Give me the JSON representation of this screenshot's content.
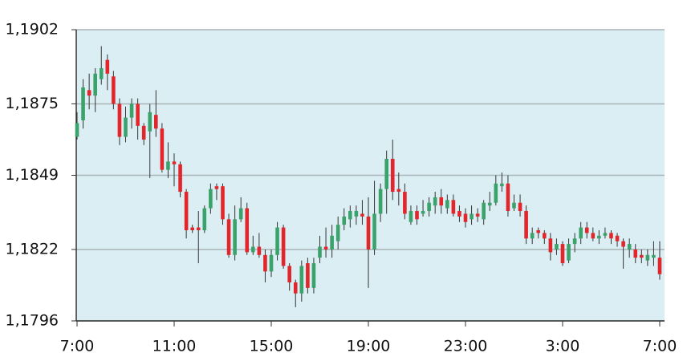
{
  "chart_data": {
    "type": "candlestick",
    "categories": [
      "7:00",
      null,
      null,
      null,
      null,
      null,
      null,
      null,
      null,
      null,
      null,
      null,
      null,
      null,
      null,
      null,
      "11:00",
      null,
      null,
      null,
      null,
      null,
      null,
      null,
      null,
      null,
      null,
      null,
      null,
      null,
      null,
      null,
      "15:00",
      null,
      null,
      null,
      null,
      null,
      null,
      null,
      null,
      null,
      null,
      null,
      null,
      null,
      null,
      null,
      "19:00",
      null,
      null,
      null,
      null,
      null,
      null,
      null,
      null,
      null,
      null,
      null,
      null,
      null,
      null,
      null,
      "23:00",
      null,
      null,
      null,
      null,
      null,
      null,
      null,
      null,
      null,
      null,
      null,
      null,
      null,
      null,
      null,
      "3:00",
      null,
      null,
      null,
      null,
      null,
      null,
      null,
      null,
      null,
      null,
      null,
      null,
      null,
      null,
      null,
      "7:00"
    ],
    "open": [
      1.1863,
      1.1869,
      1.188,
      1.1878,
      1.1884,
      1.1891,
      1.1885,
      1.1875,
      1.1863,
      1.187,
      1.1875,
      1.1867,
      1.1865,
      1.1871,
      1.1866,
      1.1851,
      1.1854,
      1.1853,
      1.1843,
      1.183,
      1.183,
      1.1829,
      1.1837,
      1.1845,
      1.1845,
      1.1833,
      1.182,
      1.1833,
      1.1837,
      1.1821,
      1.1823,
      1.182,
      1.1814,
      1.182,
      1.183,
      1.1816,
      1.181,
      1.1806,
      1.1817,
      1.1808,
      1.1819,
      1.1823,
      1.1822,
      1.1825,
      1.1831,
      1.1833,
      1.1834,
      1.1835,
      1.1834,
      1.1822,
      1.1835,
      1.1844,
      1.1855,
      1.1844,
      1.1843,
      1.1832,
      1.1836,
      1.1835,
      1.1836,
      1.1838,
      1.1841,
      1.1837,
      1.184,
      1.1836,
      1.1835,
      1.1833,
      1.1835,
      1.1833,
      1.1838,
      1.1839,
      1.1845,
      1.1846,
      1.1837,
      1.1839,
      1.1836,
      1.1826,
      1.1829,
      1.1828,
      1.1826,
      1.1822,
      1.1824,
      1.1818,
      1.1824,
      1.1826,
      1.183,
      1.1828,
      1.1826,
      1.1827,
      1.1828,
      1.1827,
      1.1825,
      1.1822,
      1.1822,
      1.182,
      1.1818,
      1.1819,
      1.1819
    ],
    "high": [
      1.1872,
      1.1884,
      1.1886,
      1.1888,
      1.1896,
      1.1893,
      1.1887,
      1.1877,
      1.1874,
      1.1877,
      1.1877,
      1.1868,
      1.1875,
      1.188,
      1.1868,
      1.1861,
      1.1857,
      1.1854,
      1.1844,
      1.1831,
      1.1836,
      1.1838,
      1.1846,
      1.1846,
      1.1846,
      1.1835,
      1.1838,
      1.1841,
      1.1839,
      1.1827,
      1.1828,
      1.1822,
      1.1822,
      1.1832,
      1.1831,
      1.1817,
      1.1811,
      1.1818,
      1.1819,
      1.1819,
      1.1827,
      1.183,
      1.1831,
      1.1834,
      1.1837,
      1.1838,
      1.1838,
      1.184,
      1.1841,
      1.1847,
      1.1846,
      1.1858,
      1.1862,
      1.185,
      1.1846,
      1.1838,
      1.1838,
      1.184,
      1.1841,
      1.1843,
      1.1844,
      1.1842,
      1.1842,
      1.1838,
      1.1837,
      1.1838,
      1.1837,
      1.184,
      1.1843,
      1.1849,
      1.185,
      1.1849,
      1.1842,
      1.1842,
      1.1838,
      1.183,
      1.183,
      1.1829,
      1.1828,
      1.1826,
      1.1825,
      1.1826,
      1.1828,
      1.1832,
      1.1832,
      1.183,
      1.1829,
      1.183,
      1.1829,
      1.1828,
      1.1826,
      1.1826,
      1.1824,
      1.1822,
      1.1822,
      1.1825,
      1.1825
    ],
    "low": [
      1.1862,
      1.1866,
      1.1873,
      1.1872,
      1.1882,
      1.188,
      1.1873,
      1.186,
      1.1861,
      1.1866,
      1.1862,
      1.186,
      1.1848,
      1.1863,
      1.185,
      1.1848,
      1.1845,
      1.1841,
      1.1826,
      1.1828,
      1.1817,
      1.1828,
      1.1835,
      1.184,
      1.1831,
      1.1819,
      1.1818,
      1.1832,
      1.182,
      1.182,
      1.1819,
      1.181,
      1.1812,
      1.1818,
      1.1815,
      1.1807,
      1.1801,
      1.1803,
      1.1806,
      1.1806,
      1.1817,
      1.1819,
      1.1819,
      1.1822,
      1.1829,
      1.183,
      1.1831,
      1.1831,
      1.1808,
      1.182,
      1.1832,
      1.1835,
      1.184,
      1.1838,
      1.1833,
      1.1831,
      1.1831,
      1.1834,
      1.1834,
      1.1835,
      1.1835,
      1.1835,
      1.1834,
      1.1832,
      1.183,
      1.1831,
      1.1832,
      1.1831,
      1.1836,
      1.1838,
      1.1843,
      1.1834,
      1.1836,
      1.1834,
      1.1824,
      1.1824,
      1.1826,
      1.1824,
      1.1818,
      1.182,
      1.1816,
      1.1817,
      1.1821,
      1.1824,
      1.1826,
      1.1825,
      1.1824,
      1.1826,
      1.1824,
      1.1823,
      1.1815,
      1.1819,
      1.1817,
      1.1817,
      1.1816,
      1.1816,
      1.1811
    ],
    "close": [
      1.1868,
      1.1881,
      1.1878,
      1.1886,
      1.1888,
      1.1886,
      1.1875,
      1.1863,
      1.187,
      1.1875,
      1.1867,
      1.1862,
      1.1872,
      1.1866,
      1.1851,
      1.1854,
      1.1853,
      1.1843,
      1.1829,
      1.1829,
      1.1829,
      1.1837,
      1.1844,
      1.1844,
      1.1833,
      1.182,
      1.1833,
      1.1837,
      1.1821,
      1.1823,
      1.182,
      1.1814,
      1.182,
      1.183,
      1.1816,
      1.181,
      1.1806,
      1.1816,
      1.1808,
      1.1817,
      1.1823,
      1.1822,
      1.1827,
      1.1831,
      1.1834,
      1.1836,
      1.1836,
      1.1834,
      1.1822,
      1.1835,
      1.1844,
      1.1855,
      1.1843,
      1.1843,
      1.1835,
      1.1836,
      1.1833,
      1.1836,
      1.1839,
      1.1841,
      1.1838,
      1.184,
      1.1835,
      1.1834,
      1.1832,
      1.1835,
      1.1834,
      1.1839,
      1.1839,
      1.1846,
      1.1846,
      1.1836,
      1.1839,
      1.1836,
      1.1826,
      1.1828,
      1.1828,
      1.1826,
      1.1821,
      1.1824,
      1.1817,
      1.1824,
      1.1826,
      1.183,
      1.1828,
      1.1826,
      1.1827,
      1.1828,
      1.1826,
      1.1825,
      1.1823,
      1.1824,
      1.1819,
      1.1819,
      1.182,
      1.182,
      1.1813
    ],
    "up_color": "#3aa26a",
    "down_color": "#e2262b",
    "ylim": [
      1.1796,
      1.1902
    ],
    "yticks": [
      {
        "value": 1.1796,
        "label": "1,1796"
      },
      {
        "value": 1.1822,
        "label": "1,1822"
      },
      {
        "value": 1.1849,
        "label": "1,1849"
      },
      {
        "value": 1.1875,
        "label": "1,1875"
      },
      {
        "value": 1.1902,
        "label": "1,1902"
      }
    ],
    "grid": true
  }
}
